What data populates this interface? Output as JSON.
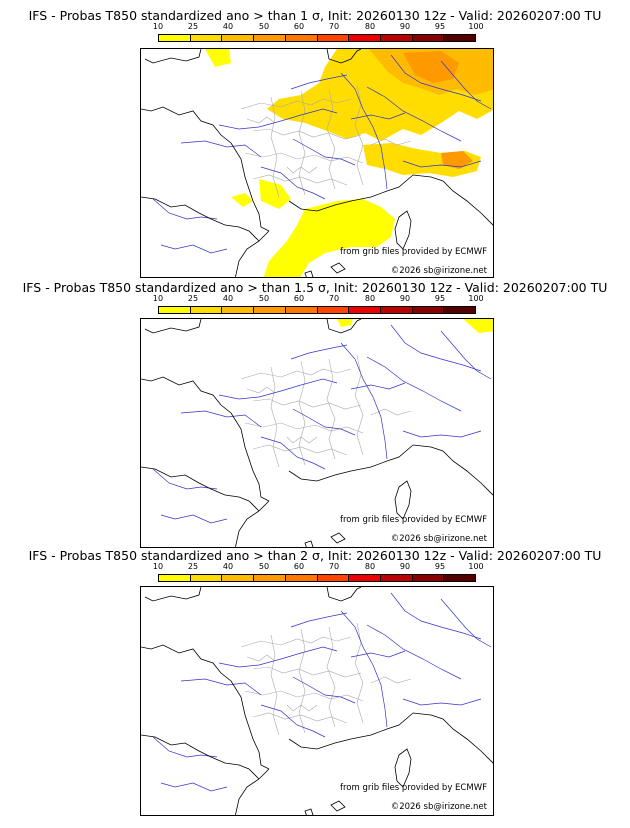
{
  "panels": [
    {
      "title": "IFS - Probas T850  standardized ano > than 1 σ, Init: 20260130 12z - Valid: 20260207:00 TU",
      "credit_source": "from grib files provided by ECMWF",
      "credit_copyright": "©2026 sb@irizone.net",
      "probability_field": "high"
    },
    {
      "title": "IFS - Probas T850  standardized ano > than 1.5 σ, Init: 20260130 12z - Valid: 20260207:00 TU",
      "credit_source": "from grib files provided by ECMWF",
      "credit_copyright": "©2026 sb@irizone.net",
      "probability_field": "trace"
    },
    {
      "title": "IFS - Probas T850  standardized ano > than 2 σ, Init: 20260130 12z - Valid: 20260207:00 TU",
      "credit_source": "from grib files provided by ECMWF",
      "credit_copyright": "©2026 sb@irizone.net",
      "probability_field": "none"
    }
  ],
  "legend": {
    "labels": [
      "10",
      "25",
      "40",
      "50",
      "60",
      "70",
      "80",
      "90",
      "95",
      "100"
    ],
    "colors": [
      "#ffff00",
      "#ffdd00",
      "#ffbb00",
      "#ff9900",
      "#ff7700",
      "#ff4400",
      "#ee0000",
      "#bb0000",
      "#880000",
      "#550000"
    ]
  },
  "map_colors": {
    "rivers": "#3333cc",
    "coast": "#000000",
    "regions": "#aaaaaa"
  }
}
